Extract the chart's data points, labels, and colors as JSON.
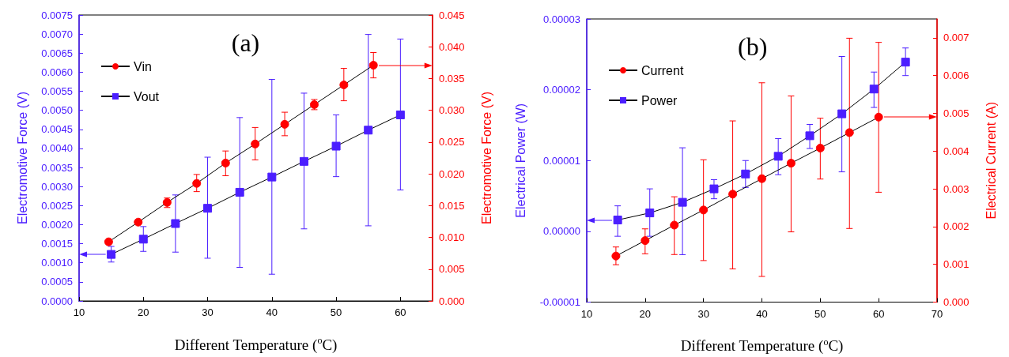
{
  "chart_data": [
    {
      "type": "line",
      "title": "(a)",
      "xlabel": "Different Temperature ($^{o}$C)",
      "ylabel": "Electromotive Force (V)",
      "y2label": "Electromotive Force (V)",
      "xlim": [
        10,
        65
      ],
      "xticks": [
        10,
        20,
        30,
        40,
        50,
        60
      ],
      "ylim": [
        0,
        0.0075
      ],
      "yticks": [
        {
          "value": 0,
          "label": "0.0000"
        },
        {
          "value": 0.0005,
          "label": "0.0005"
        },
        {
          "value": 0.001,
          "label": "0.0010"
        },
        {
          "value": 0.0015,
          "label": "0.0015"
        },
        {
          "value": 0.002,
          "label": "0.0020"
        },
        {
          "value": 0.0025,
          "label": "0.0025"
        },
        {
          "value": 0.003,
          "label": "0.0030"
        },
        {
          "value": 0.0035,
          "label": "0.0035"
        },
        {
          "value": 0.004,
          "label": "0.0040"
        },
        {
          "value": 0.0045,
          "label": "0.0045"
        },
        {
          "value": 0.005,
          "label": "0.0050"
        },
        {
          "value": 0.0055,
          "label": "0.0055"
        },
        {
          "value": 0.006,
          "label": "0.0060"
        },
        {
          "value": 0.0065,
          "label": "0.0065"
        },
        {
          "value": 0.007,
          "label": "0.0070"
        },
        {
          "value": 0.0075,
          "label": "0.0075"
        }
      ],
      "y2lim": [
        0,
        0.045
      ],
      "y2ticks": [
        {
          "value": 0,
          "label": "0.000"
        },
        {
          "value": 0.005,
          "label": "0.005"
        },
        {
          "value": 0.01,
          "label": "0.010"
        },
        {
          "value": 0.015,
          "label": "0.015"
        },
        {
          "value": 0.02,
          "label": "0.020"
        },
        {
          "value": 0.025,
          "label": "0.025"
        },
        {
          "value": 0.03,
          "label": "0.030"
        },
        {
          "value": 0.035,
          "label": "0.035"
        },
        {
          "value": 0.04,
          "label": "0.040"
        },
        {
          "value": 0.045,
          "label": "0.045"
        }
      ],
      "legend": "top left",
      "grid": false,
      "series": [
        {
          "name": "Vin",
          "axis": "y2",
          "color": "#ff0000",
          "marker": "circle",
          "x": [
            14.6,
            19.2,
            23.7,
            28.3,
            32.8,
            37.4,
            42.0,
            46.6,
            51.2,
            55.8
          ],
          "values": [
            0.0093,
            0.0124,
            0.0155,
            0.0185,
            0.0217,
            0.0247,
            0.0278,
            0.0309,
            0.034,
            0.0371
          ],
          "errors": [
            null,
            null,
            [
              0.0147,
              0.0162
            ],
            [
              0.0172,
              0.0199
            ],
            [
              0.0197,
              0.0236
            ],
            [
              0.0222,
              0.0273
            ],
            [
              0.026,
              0.0297
            ],
            [
              0.0301,
              0.0317
            ],
            [
              0.0315,
              0.0366
            ],
            [
              0.0351,
              0.0391
            ]
          ]
        },
        {
          "name": "Vout",
          "axis": "y",
          "color": "#4b1eff",
          "marker": "square",
          "x": [
            15,
            20,
            25,
            30,
            35,
            40,
            45,
            50,
            55,
            60
          ],
          "values": [
            0.00122,
            0.00162,
            0.00203,
            0.00243,
            0.00285,
            0.00325,
            0.00366,
            0.00406,
            0.00448,
            0.00488
          ],
          "errors": [
            [
              0.00102,
              0.00143
            ],
            [
              0.0013,
              0.00195
            ],
            [
              0.00128,
              0.00278
            ],
            [
              0.00112,
              0.00377
            ],
            [
              0.00088,
              0.00481
            ],
            [
              0.0007,
              0.00581
            ],
            [
              0.00189,
              0.00545
            ],
            [
              0.00326,
              0.00488
            ],
            [
              0.00197,
              0.00699
            ],
            [
              0.00291,
              0.00687
            ]
          ]
        }
      ]
    },
    {
      "type": "line",
      "title": "(b)",
      "xlabel": "Different Temperature ($^{o}$C)",
      "ylabel": "Electrical Power (W)",
      "y2label": "Electrical Current (A)",
      "xlim": [
        10,
        70
      ],
      "xticks": [
        10,
        20,
        30,
        40,
        50,
        60,
        70
      ],
      "ylim": [
        -1e-05,
        3e-05
      ],
      "yticks": [
        {
          "value": -1e-05,
          "label": "-0.00001"
        },
        {
          "value": 0,
          "label": "0.00000"
        },
        {
          "value": 1e-05,
          "label": "0.00001"
        },
        {
          "value": 2e-05,
          "label": "0.00002"
        },
        {
          "value": 3e-05,
          "label": "0.00003"
        }
      ],
      "y2lim": [
        0,
        0.0075
      ],
      "y2ticks": [
        {
          "value": 0,
          "label": "0.000"
        },
        {
          "value": 0.001,
          "label": "0.001"
        },
        {
          "value": 0.002,
          "label": "0.002"
        },
        {
          "value": 0.003,
          "label": "0.003"
        },
        {
          "value": 0.004,
          "label": "0.004"
        },
        {
          "value": 0.005,
          "label": "0.005"
        },
        {
          "value": 0.006,
          "label": "0.006"
        },
        {
          "value": 0.007,
          "label": "0.007"
        }
      ],
      "legend": "top left",
      "grid": false,
      "series": [
        {
          "name": "Current",
          "axis": "y2",
          "color": "#ff0000",
          "marker": "circle",
          "x": [
            15,
            20,
            25,
            30,
            35,
            40,
            45,
            50,
            55,
            60
          ],
          "values": [
            0.00122,
            0.00163,
            0.00204,
            0.00244,
            0.00286,
            0.00327,
            0.00368,
            0.00408,
            0.00449,
            0.0049
          ],
          "errors": [
            [
              0.00099,
              0.00146
            ],
            [
              0.00128,
              0.00194
            ],
            [
              0.00126,
              0.00279
            ],
            [
              0.0011,
              0.00377
            ],
            [
              0.00088,
              0.0048
            ],
            [
              0.00068,
              0.00581
            ],
            [
              0.00186,
              0.00546
            ],
            [
              0.00326,
              0.00487
            ],
            [
              0.00195,
              0.00699
            ],
            [
              0.00291,
              0.00688
            ]
          ]
        },
        {
          "name": "Power",
          "axis": "y",
          "color": "#4b1eff",
          "marker": "square",
          "x": [
            15.3,
            20.8,
            26.4,
            31.8,
            37.2,
            42.8,
            48.2,
            53.7,
            59.2,
            64.6
          ],
          "values": [
            1.6e-06,
            2.6e-06,
            4.1e-06,
            6e-06,
            8.1e-06,
            1.06e-05,
            1.35e-05,
            1.66e-05,
            2.01e-05,
            2.39e-05
          ],
          "errors": [
            [
              -7e-07,
              3.6e-06
            ],
            [
              -7e-07,
              6e-06
            ],
            [
              -3.3e-06,
              1.18e-05
            ],
            [
              4.6e-06,
              7.3e-06
            ],
            [
              6.2e-06,
              1e-05
            ],
            [
              8e-06,
              1.31e-05
            ],
            [
              1.17e-05,
              1.51e-05
            ],
            [
              8.4e-06,
              2.47e-05
            ],
            [
              1.75e-05,
              2.25e-05
            ],
            [
              2.2e-05,
              2.59e-05
            ]
          ]
        }
      ]
    }
  ]
}
